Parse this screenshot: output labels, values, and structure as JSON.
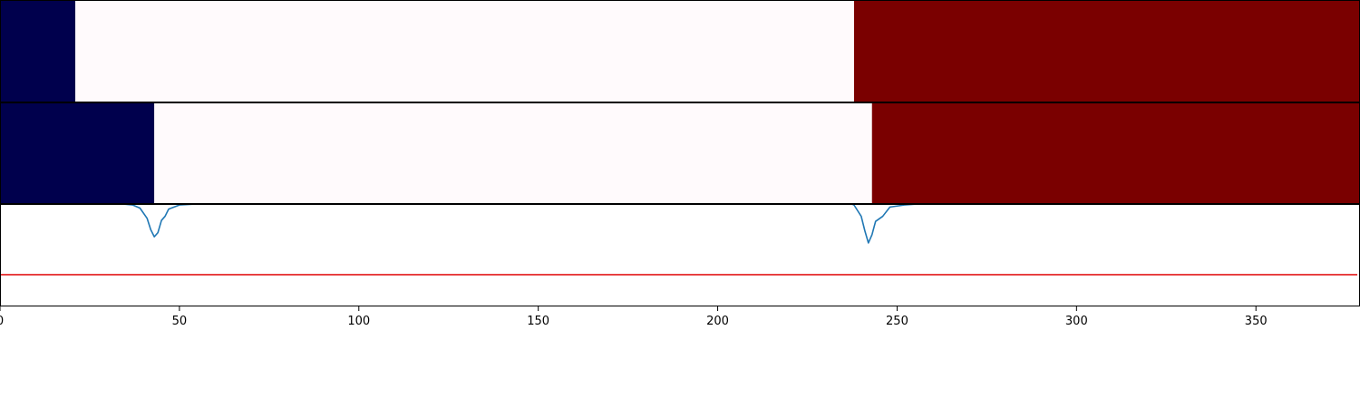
{
  "chart_data": {
    "type": "composite",
    "x_range": [
      0,
      379
    ],
    "xticks": [
      {
        "value": 0,
        "label": "0"
      },
      {
        "value": 50,
        "label": "50"
      },
      {
        "value": 100,
        "label": "100"
      },
      {
        "value": 150,
        "label": "150"
      },
      {
        "value": 200,
        "label": "200"
      },
      {
        "value": 250,
        "label": "250"
      },
      {
        "value": 300,
        "label": "300"
      },
      {
        "value": 350,
        "label": "350"
      }
    ],
    "panels": [
      {
        "type": "segment_strip",
        "segments": [
          {
            "start": 0,
            "end": 21,
            "color": "#00004d"
          },
          {
            "start": 21,
            "end": 238,
            "color": "#fffafc"
          },
          {
            "start": 238,
            "end": 379,
            "color": "#7a0000"
          }
        ]
      },
      {
        "type": "segment_strip",
        "segments": [
          {
            "start": 0,
            "end": 43,
            "color": "#00004d"
          },
          {
            "start": 43,
            "end": 243,
            "color": "#fffafc"
          },
          {
            "start": 243,
            "end": 379,
            "color": "#7a0000"
          }
        ]
      },
      {
        "type": "line",
        "ylim": [
          0,
          1
        ],
        "threshold": {
          "value": 0.31,
          "color": "#e31a1c"
        },
        "series": [
          {
            "color": "#1f77b4",
            "x": [
              30,
              34,
              37,
              39,
              41,
              42,
              43,
              44,
              45,
              46,
              47,
              50,
              55,
              65,
              80,
              100,
              150,
              200,
              225,
              232,
              236,
              238,
              240,
              241,
              242,
              243,
              244,
              246,
              248,
              252,
              256
            ],
            "y": [
              1.02,
              1.0,
              0.99,
              0.96,
              0.86,
              0.75,
              0.68,
              0.72,
              0.84,
              0.88,
              0.95,
              0.99,
              1.0,
              1.0,
              1.0,
              1.0,
              1.0,
              1.0,
              1.0,
              1.0,
              1.02,
              0.99,
              0.88,
              0.74,
              0.62,
              0.7,
              0.83,
              0.88,
              0.97,
              0.99,
              1.0
            ]
          }
        ]
      }
    ]
  }
}
